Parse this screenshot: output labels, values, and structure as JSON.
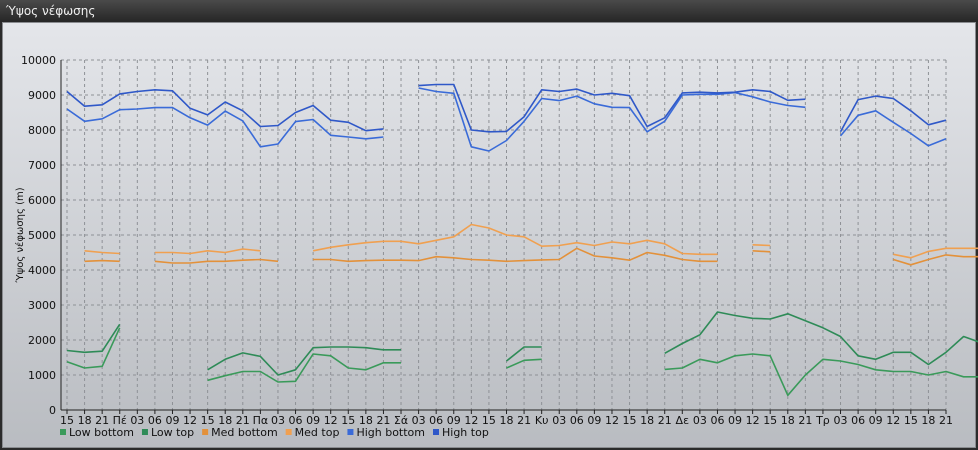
{
  "window": {
    "title": "Ύψος νέφωσης"
  },
  "chart_data": {
    "type": "line",
    "title": "",
    "xlabel": "",
    "ylabel": "Ύψος νέφωσης (m)",
    "ylim": [
      0,
      10000
    ],
    "yticks": [
      0,
      1000,
      2000,
      3000,
      4000,
      5000,
      6000,
      7000,
      8000,
      9000,
      10000
    ],
    "grid": true,
    "legend_position": "bottom-left",
    "x_tick_labels": [
      "15",
      "18",
      "21",
      "Πέ",
      "03",
      "06",
      "09",
      "12",
      "15",
      "18",
      "21",
      "Πα",
      "03",
      "06",
      "09",
      "12",
      "15",
      "18",
      "21",
      "Σά",
      "03",
      "06",
      "09",
      "12",
      "15",
      "18",
      "21",
      "Κυ",
      "03",
      "06",
      "09",
      "12",
      "15",
      "18",
      "21",
      "Δε",
      "03",
      "06",
      "09",
      "12",
      "15",
      "18",
      "21",
      "Τρ",
      "03",
      "06",
      "09",
      "12",
      "15",
      "18",
      "21"
    ],
    "series": [
      {
        "name": "Low bottom",
        "color": "#3a9a5a",
        "values": [
          1380,
          1200,
          1250,
          2350,
          null,
          null,
          null,
          null,
          850,
          980,
          1100,
          1100,
          800,
          820,
          1600,
          1550,
          1200,
          1150,
          1350,
          1350,
          null,
          null,
          null,
          null,
          null,
          1200,
          1420,
          1450,
          null,
          null,
          null,
          null,
          null,
          null,
          1160,
          1200,
          1450,
          1350,
          1550,
          1600,
          1550,
          420,
          1000,
          1450,
          1400,
          1300,
          1150,
          1100,
          1100,
          1000,
          1100,
          950,
          950
        ]
      },
      {
        "name": "Low top",
        "color": "#2e8b57",
        "values": [
          1700,
          1650,
          1680,
          2450,
          null,
          null,
          null,
          null,
          1150,
          1450,
          1630,
          1530,
          1000,
          1150,
          1780,
          1800,
          1800,
          1780,
          1720,
          1720,
          null,
          null,
          null,
          null,
          null,
          1400,
          1800,
          1800,
          null,
          null,
          null,
          null,
          null,
          null,
          1620,
          1900,
          2150,
          2800,
          2700,
          2620,
          2600,
          2750,
          2550,
          2350,
          2100,
          1550,
          1450,
          1650,
          1650,
          1300,
          1650,
          2100,
          1920
        ]
      },
      {
        "name": "Med bottom",
        "color": "#e3913a",
        "values": [
          null,
          4250,
          4270,
          4250,
          null,
          4250,
          4200,
          4200,
          4250,
          4250,
          4280,
          4300,
          4250,
          null,
          4300,
          4300,
          4250,
          4270,
          4280,
          4280,
          4270,
          4380,
          4350,
          4300,
          4280,
          4250,
          4270,
          4290,
          4300,
          4620,
          4400,
          4350,
          4280,
          4500,
          4420,
          4300,
          4250,
          4250,
          null,
          4550,
          4520,
          null,
          null,
          null,
          null,
          null,
          null,
          4300,
          4150,
          4300,
          4430,
          4380,
          4380
        ]
      },
      {
        "name": "Med top",
        "color": "#f0a050",
        "values": [
          null,
          4550,
          4500,
          4470,
          null,
          4500,
          4500,
          4470,
          4550,
          4500,
          4600,
          4550,
          null,
          null,
          4550,
          4650,
          4720,
          4780,
          4820,
          4820,
          4750,
          4850,
          4950,
          5300,
          5200,
          5000,
          4950,
          4680,
          4700,
          4780,
          4700,
          4800,
          4750,
          4850,
          4750,
          4470,
          4450,
          4450,
          null,
          4720,
          4700,
          null,
          null,
          null,
          null,
          null,
          null,
          4450,
          4350,
          4530,
          4620,
          4620,
          4620
        ]
      },
      {
        "name": "High bottom",
        "color": "#3a6bd8",
        "values": [
          8600,
          8250,
          8320,
          8580,
          8600,
          8640,
          8640,
          8350,
          8140,
          8540,
          8260,
          7520,
          7600,
          8240,
          8300,
          7850,
          7800,
          7750,
          7800,
          null,
          9200,
          9100,
          9050,
          7520,
          7400,
          7700,
          8250,
          8900,
          8840,
          8970,
          8750,
          8650,
          8640,
          7950,
          8250,
          9000,
          9020,
          9020,
          9070,
          8950,
          8800,
          8700,
          8650,
          null,
          7830,
          8420,
          8550,
          8220,
          7900,
          7550,
          7750,
          null,
          null
        ]
      },
      {
        "name": "High top",
        "color": "#2f58c8",
        "values": [
          9100,
          8680,
          8720,
          9030,
          9100,
          9150,
          9120,
          8620,
          8430,
          8800,
          8550,
          8100,
          8130,
          8500,
          8700,
          8280,
          8220,
          7980,
          8030,
          null,
          9270,
          9300,
          9300,
          8000,
          7950,
          7960,
          8380,
          9150,
          9100,
          9170,
          9000,
          9050,
          8980,
          8100,
          8350,
          9060,
          9080,
          9060,
          9080,
          9150,
          9100,
          8850,
          8880,
          null,
          7950,
          8870,
          8970,
          8900,
          8550,
          8150,
          8280,
          null,
          null
        ]
      }
    ]
  }
}
